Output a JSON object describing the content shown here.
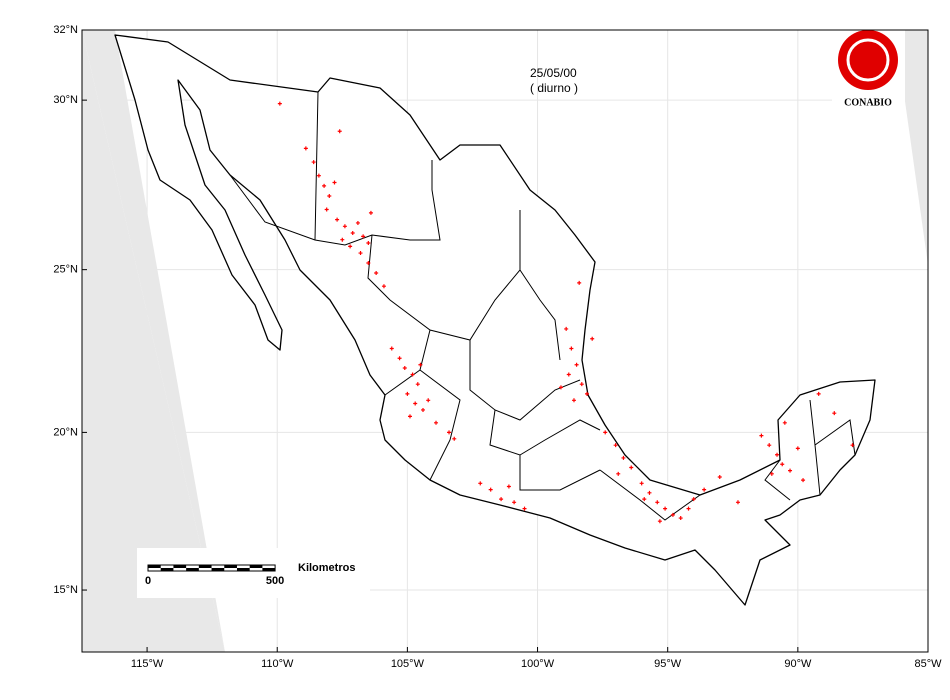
{
  "chart_data": {
    "type": "scatter",
    "title": "25/05/00",
    "subtitle": "( diurno )",
    "logo_text": "CONABIO",
    "color": "#ff0000",
    "marker": "+",
    "xlim": [
      -117.5,
      -85
    ],
    "ylim": [
      13,
      32
    ],
    "projection": "mercator",
    "grid": true,
    "xticks": [
      {
        "value": -115,
        "label": "115°W"
      },
      {
        "value": -110,
        "label": "110°W"
      },
      {
        "value": -105,
        "label": "105°W"
      },
      {
        "value": -100,
        "label": "100°W"
      },
      {
        "value": -95,
        "label": "95°W"
      },
      {
        "value": -90,
        "label": "90°W"
      },
      {
        "value": -85,
        "label": "85°W"
      }
    ],
    "yticks": [
      {
        "value": 15,
        "label": "15°N"
      },
      {
        "value": 20,
        "label": "20°N"
      },
      {
        "value": 25,
        "label": "25°N"
      },
      {
        "value": 30,
        "label": "30°N"
      },
      {
        "value": 32,
        "label": "32°N"
      }
    ],
    "x": [
      -109.9,
      -108.9,
      -108.6,
      -108.4,
      -108.2,
      -108.0,
      -107.8,
      -107.6,
      -108.1,
      -107.7,
      -107.4,
      -107.1,
      -106.9,
      -106.7,
      -106.5,
      -107.2,
      -107.5,
      -106.8,
      -106.5,
      -106.2,
      -105.9,
      -106.4,
      -105.6,
      -105.3,
      -105.1,
      -104.8,
      -104.6,
      -105.0,
      -104.7,
      -104.4,
      -104.9,
      -104.2,
      -104.5,
      -103.9,
      -103.4,
      -103.2,
      -102.2,
      -101.8,
      -101.4,
      -100.9,
      -100.5,
      -101.1,
      -98.9,
      -98.7,
      -98.5,
      -98.8,
      -98.3,
      -98.1,
      -98.6,
      -99.1,
      -98.4,
      -97.9,
      -97.4,
      -97.0,
      -96.7,
      -96.4,
      -96.9,
      -96.0,
      -95.7,
      -95.4,
      -95.1,
      -94.8,
      -94.5,
      -94.2,
      -95.3,
      -95.9,
      -94.0,
      -93.6,
      -91.4,
      -91.1,
      -90.8,
      -90.6,
      -90.3,
      -90.0,
      -91.0,
      -90.5,
      -89.8,
      -92.3,
      -93.0,
      -89.2,
      -88.6,
      -87.9
    ],
    "y": [
      29.9,
      28.6,
      28.2,
      27.8,
      27.5,
      27.2,
      27.6,
      29.1,
      26.8,
      26.5,
      26.3,
      26.1,
      26.4,
      26.0,
      25.8,
      25.7,
      25.9,
      25.5,
      25.2,
      24.9,
      24.5,
      26.7,
      22.6,
      22.3,
      22.0,
      21.8,
      21.5,
      21.2,
      20.9,
      20.7,
      20.5,
      21.0,
      22.1,
      20.3,
      20.0,
      19.8,
      18.4,
      18.2,
      17.9,
      17.8,
      17.6,
      18.3,
      23.2,
      22.6,
      22.1,
      21.8,
      21.5,
      21.2,
      21.0,
      21.4,
      24.6,
      22.9,
      20.0,
      19.6,
      19.2,
      18.9,
      18.7,
      18.4,
      18.1,
      17.8,
      17.6,
      17.4,
      17.3,
      17.6,
      17.2,
      17.9,
      17.9,
      18.2,
      19.9,
      19.6,
      19.3,
      19.0,
      18.8,
      19.5,
      18.7,
      20.3,
      18.5,
      17.8,
      18.6,
      21.2,
      20.6,
      19.6
    ],
    "scale_bar": {
      "label": "Kilometros",
      "ticks": [
        0,
        500
      ]
    }
  }
}
